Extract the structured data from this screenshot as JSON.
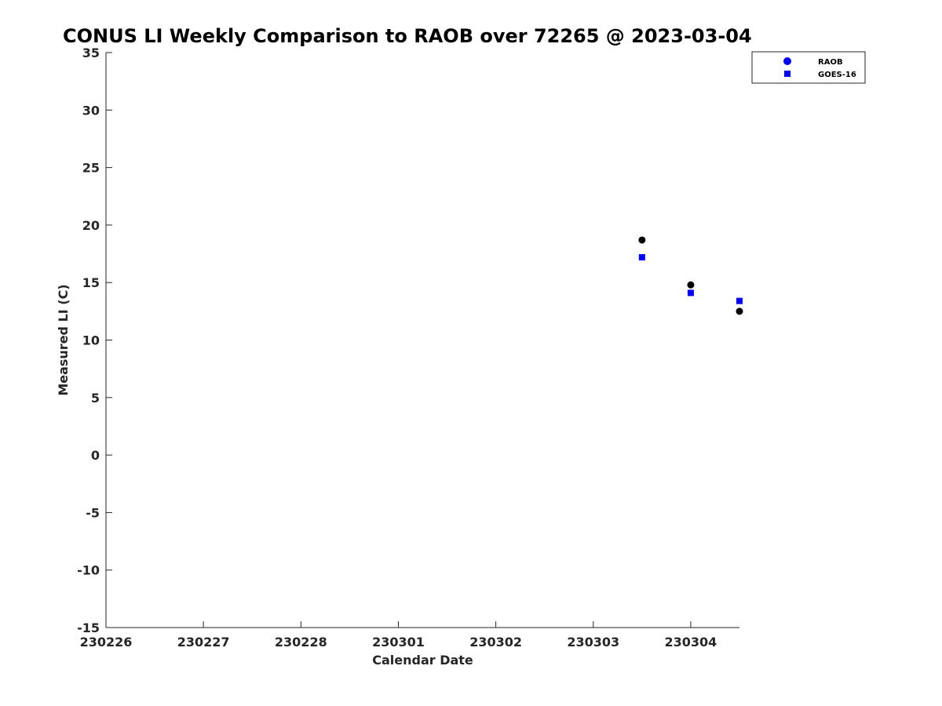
{
  "chart_data": {
    "type": "scatter",
    "title": "CONUS LI Weekly Comparison to RAOB over 72265 @ 2023-03-04",
    "xlabel": "Calendar Date",
    "ylabel": "Measured LI (C)",
    "x_ticks": [
      "230226",
      "230227",
      "230228",
      "230301",
      "230302",
      "230303",
      "230304"
    ],
    "xlim": [
      "2023-02-26T00:00",
      "2023-03-04T12:00"
    ],
    "y_ticks": [
      "35",
      "30",
      "25",
      "20",
      "15",
      "10",
      "5",
      "0",
      "-5",
      "-10",
      "-15"
    ],
    "ylim": [
      -15,
      35
    ],
    "grid": false,
    "legend_position": "top-right outside",
    "series": [
      {
        "name": "RAOB",
        "marker": "circle",
        "legend_color": "#0000ff",
        "point_color": "#000000",
        "points": [
          {
            "x": "2023-03-03T12:00",
            "y": 18.7
          },
          {
            "x": "2023-03-04T00:00",
            "y": 14.8
          },
          {
            "x": "2023-03-04T12:00",
            "y": 12.5
          }
        ]
      },
      {
        "name": "GOES-16",
        "marker": "square",
        "legend_color": "#0000ff",
        "point_color": "#0000ff",
        "points": [
          {
            "x": "2023-03-03T12:00",
            "y": 17.2
          },
          {
            "x": "2023-03-04T00:00",
            "y": 14.1
          },
          {
            "x": "2023-03-04T12:00",
            "y": 13.4
          }
        ]
      }
    ]
  }
}
